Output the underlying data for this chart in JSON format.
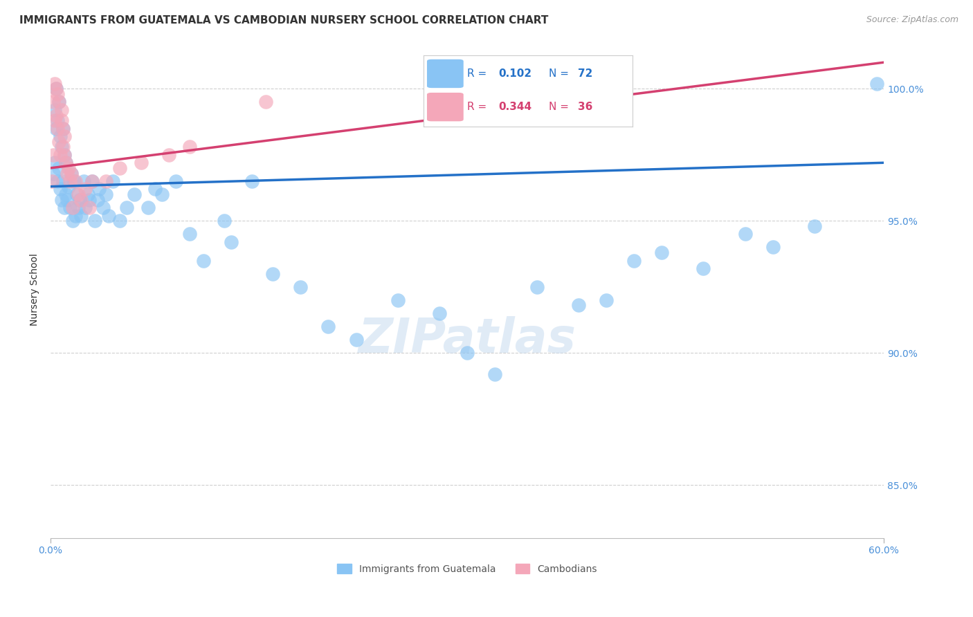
{
  "title": "IMMIGRANTS FROM GUATEMALA VS CAMBODIAN NURSERY SCHOOL CORRELATION CHART",
  "source": "Source: ZipAtlas.com",
  "ylabel": "Nursery School",
  "legend_blue_r": "0.102",
  "legend_blue_n": "72",
  "legend_pink_r": "0.344",
  "legend_pink_n": "36",
  "xmin": 0.0,
  "xmax": 60.0,
  "ymin": 83.0,
  "ymax": 101.8,
  "blue_color": "#89C4F4",
  "pink_color": "#F4A7B9",
  "blue_line_color": "#2471C8",
  "pink_line_color": "#D44070",
  "blue_scatter_color": "#89C4F4",
  "pink_scatter_color": "#F4A7B9",
  "watermark_color": "#C8DCF0",
  "grid_color": "#BBBBBB",
  "tick_color": "#4A90D9",
  "title_color": "#333333",
  "source_color": "#999999",
  "ylabel_color": "#333333",
  "background_color": "#ffffff",
  "blue_x": [
    0.2,
    0.3,
    0.3,
    0.4,
    0.4,
    0.5,
    0.5,
    0.6,
    0.6,
    0.7,
    0.7,
    0.8,
    0.8,
    0.9,
    0.9,
    1.0,
    1.0,
    1.1,
    1.1,
    1.2,
    1.3,
    1.4,
    1.5,
    1.6,
    1.7,
    1.8,
    1.9,
    2.0,
    2.1,
    2.2,
    2.4,
    2.5,
    2.7,
    2.8,
    3.0,
    3.2,
    3.4,
    3.5,
    3.8,
    4.0,
    4.2,
    4.5,
    5.0,
    5.5,
    6.0,
    7.0,
    7.5,
    8.0,
    9.0,
    10.0,
    11.0,
    12.5,
    13.0,
    14.5,
    16.0,
    18.0,
    20.0,
    22.0,
    25.0,
    28.0,
    30.0,
    32.0,
    35.0,
    38.0,
    40.0,
    42.0,
    44.0,
    47.0,
    50.0,
    52.0,
    55.0,
    59.5
  ],
  "blue_y": [
    96.8,
    97.2,
    99.2,
    98.5,
    100.0,
    96.5,
    98.8,
    97.0,
    99.5,
    96.2,
    98.2,
    95.8,
    97.8,
    96.5,
    98.5,
    95.5,
    97.5,
    96.0,
    97.2,
    95.8,
    96.3,
    95.5,
    96.8,
    95.0,
    96.5,
    95.2,
    96.0,
    95.5,
    95.8,
    95.2,
    96.5,
    95.5,
    96.0,
    95.8,
    96.5,
    95.0,
    95.8,
    96.2,
    95.5,
    96.0,
    95.2,
    96.5,
    95.0,
    95.5,
    96.0,
    95.5,
    96.2,
    96.0,
    96.5,
    94.5,
    93.5,
    95.0,
    94.2,
    96.5,
    93.0,
    92.5,
    91.0,
    90.5,
    92.0,
    91.5,
    90.0,
    89.2,
    92.5,
    91.8,
    92.0,
    93.5,
    93.8,
    93.2,
    94.5,
    94.0,
    94.8,
    100.2
  ],
  "pink_x": [
    0.1,
    0.2,
    0.2,
    0.3,
    0.3,
    0.4,
    0.4,
    0.5,
    0.5,
    0.6,
    0.6,
    0.7,
    0.8,
    0.8,
    0.9,
    0.9,
    1.0,
    1.0,
    1.1,
    1.2,
    1.3,
    1.4,
    1.5,
    1.6,
    1.8,
    2.0,
    2.2,
    2.5,
    2.8,
    3.0,
    4.0,
    5.0,
    6.5,
    8.5,
    10.0,
    15.5
  ],
  "pink_y": [
    96.5,
    97.5,
    99.5,
    98.8,
    100.2,
    99.0,
    100.0,
    98.5,
    99.8,
    98.0,
    99.5,
    97.5,
    98.8,
    99.2,
    97.8,
    98.5,
    97.5,
    98.2,
    97.2,
    96.8,
    97.0,
    96.5,
    96.8,
    95.5,
    96.5,
    96.0,
    95.8,
    96.2,
    95.5,
    96.5,
    96.5,
    97.0,
    97.2,
    97.5,
    97.8,
    99.5
  ],
  "blue_trend_x0": 0.0,
  "blue_trend_x1": 60.0,
  "blue_trend_y0": 96.3,
  "blue_trend_y1": 97.2,
  "pink_trend_x0": 0.0,
  "pink_trend_x1": 60.0,
  "pink_trend_y0": 97.0,
  "pink_trend_y1": 101.0,
  "xtick_positions": [
    0,
    60
  ],
  "xtick_labels": [
    "0.0%",
    "60.0%"
  ],
  "ytick_positions": [
    85,
    90,
    95,
    100
  ],
  "ytick_labels": [
    "85.0%",
    "90.0%",
    "95.0%",
    "100.0%"
  ],
  "watermark": "ZIPatlas",
  "bottom_legend_label1": "Immigrants from Guatemala",
  "bottom_legend_label2": "Cambodians"
}
